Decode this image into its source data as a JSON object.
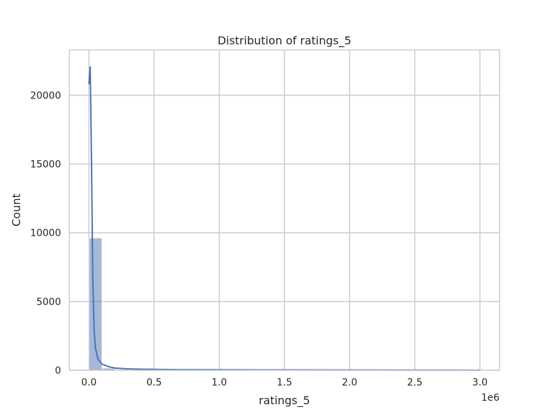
{
  "chart_data": {
    "type": "bar",
    "title": "Distribution of ratings_5",
    "xlabel": "ratings_5",
    "ylabel": "Count",
    "x_scale_note": "1e6",
    "xlim": [
      -0.15,
      3.15
    ],
    "ylim": [
      0,
      23300
    ],
    "x_ticks": [
      0.0,
      0.5,
      1.0,
      1.5,
      2.0,
      2.5,
      3.0
    ],
    "x_tick_labels": [
      "0.0",
      "0.5",
      "1.0",
      "1.5",
      "2.0",
      "2.5",
      "3.0"
    ],
    "y_ticks": [
      0,
      5000,
      10000,
      15000,
      20000
    ],
    "y_tick_labels": [
      "0",
      "5000",
      "10000",
      "15000",
      "20000"
    ],
    "grid": true,
    "bins": {
      "start": 0.0,
      "width": 0.1,
      "counts": [
        9620,
        150,
        60,
        30,
        18,
        12,
        10,
        8,
        6,
        5,
        5,
        4,
        3,
        3,
        2,
        2,
        2,
        1,
        1,
        1,
        1,
        1,
        1,
        1,
        1,
        1,
        1,
        1,
        1,
        1
      ]
    },
    "kde": {
      "x": [
        0.0,
        0.01,
        0.02,
        0.03,
        0.04,
        0.05,
        0.07,
        0.1,
        0.15,
        0.2,
        0.3,
        0.4,
        0.5,
        0.7,
        1.0,
        1.5,
        2.0,
        2.5,
        3.0
      ],
      "y": [
        20800,
        22100,
        15000,
        6500,
        2900,
        1600,
        800,
        450,
        260,
        160,
        100,
        75,
        60,
        45,
        35,
        25,
        18,
        12,
        8
      ]
    },
    "colors": {
      "bar_fill": "#4c72b0",
      "bar_opacity": 0.5,
      "line": "#4c72b0",
      "grid": "#cccccc",
      "frame": "#cccccc"
    }
  }
}
